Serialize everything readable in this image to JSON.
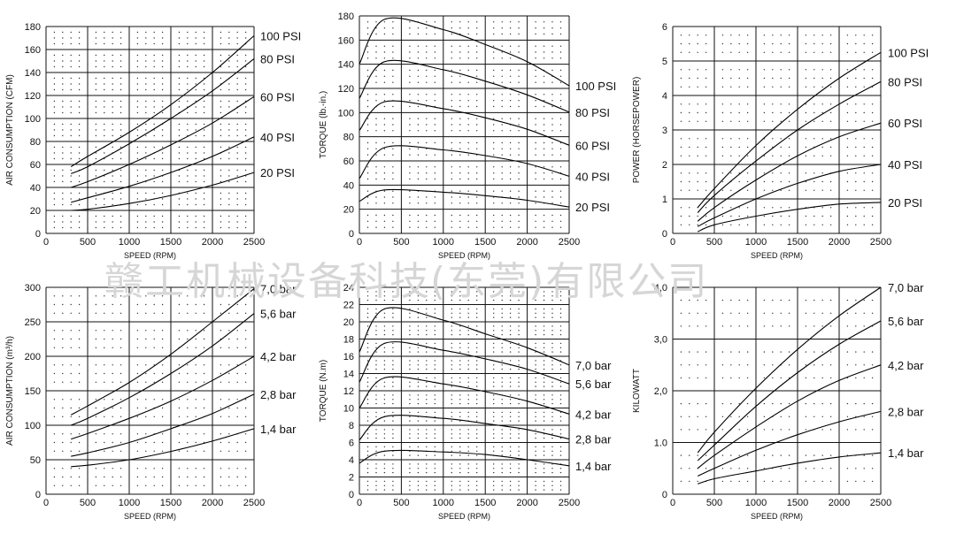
{
  "watermark": "赣工机械设备科技(东莞)有限公司",
  "chart_data": [
    {
      "type": "line",
      "xlabel": "SPEED (RPM)",
      "ylabel": "AIR CONSUMPTION (CFM)",
      "xlim": [
        0,
        2500
      ],
      "ylim": [
        0,
        180
      ],
      "xticks": [
        "0",
        "500",
        "1000",
        "1500",
        "2000",
        "2500"
      ],
      "yticks": [
        "0",
        "20",
        "40",
        "60",
        "80",
        "100",
        "120",
        "140",
        "160",
        "180"
      ],
      "series": [
        {
          "name": "100 PSI",
          "x": [
            300,
            500,
            1000,
            1500,
            2000,
            2500
          ],
          "y": [
            58,
            67,
            88,
            112,
            140,
            172
          ]
        },
        {
          "name": "80 PSI",
          "x": [
            300,
            500,
            1000,
            1500,
            2000,
            2500
          ],
          "y": [
            52,
            58,
            78,
            100,
            124,
            152
          ]
        },
        {
          "name": "60 PSI",
          "x": [
            300,
            500,
            1000,
            1500,
            2000,
            2500
          ],
          "y": [
            40,
            45,
            60,
            77,
            96,
            119
          ]
        },
        {
          "name": "40 PSI",
          "x": [
            300,
            500,
            1000,
            1500,
            2000,
            2500
          ],
          "y": [
            27,
            31,
            41,
            53,
            67,
            84
          ]
        },
        {
          "name": "20 PSI",
          "x": [
            300,
            500,
            1000,
            1500,
            2000,
            2500
          ],
          "y": [
            20,
            21,
            26,
            33,
            42,
            53
          ]
        }
      ]
    },
    {
      "type": "line",
      "xlabel": "SPEED (RPM)",
      "ylabel": "TORQUE (lb.-in.)",
      "xlim": [
        0,
        2500
      ],
      "ylim": [
        0,
        190
      ],
      "xticks": [
        "0",
        "500",
        "1000",
        "1500",
        "2000",
        "2500"
      ],
      "yticks": [
        "0",
        "20",
        "40",
        "60",
        "80",
        "100",
        "120",
        "140",
        "160",
        "180"
      ],
      "series": [
        {
          "name": "100 PSI",
          "x": [
            0,
            300,
            1000,
            1500,
            2000,
            2500
          ],
          "y": [
            148,
            187,
            178,
            165,
            150,
            129
          ]
        },
        {
          "name": "80 PSI",
          "x": [
            0,
            300,
            1000,
            1500,
            2000,
            2500
          ],
          "y": [
            118,
            150,
            143,
            133,
            121,
            106
          ]
        },
        {
          "name": "60 PSI",
          "x": [
            0,
            300,
            1000,
            1500,
            2000,
            2500
          ],
          "y": [
            90,
            115,
            109,
            101,
            91,
            77
          ]
        },
        {
          "name": "40 PSI",
          "x": [
            0,
            300,
            1000,
            1500,
            2000,
            2500
          ],
          "y": [
            48,
            75,
            73,
            68,
            61,
            50
          ]
        },
        {
          "name": "20 PSI",
          "x": [
            0,
            300,
            1000,
            1500,
            2000,
            2500
          ],
          "y": [
            28,
            38,
            36,
            33,
            29,
            23
          ]
        }
      ]
    },
    {
      "type": "line",
      "xlabel": "SPEED (RPM)",
      "ylabel": "POWER (HORSEPOWER)",
      "xlim": [
        0,
        2500
      ],
      "ylim": [
        0,
        6
      ],
      "xticks": [
        "0",
        "500",
        "1000",
        "1500",
        "2000",
        "2500"
      ],
      "yticks": [
        "0",
        "1",
        "2",
        "3",
        "4",
        "5",
        "6"
      ],
      "series": [
        {
          "name": "100 PSI",
          "x": [
            300,
            500,
            1000,
            1500,
            2000,
            2500
          ],
          "y": [
            0.75,
            1.3,
            2.55,
            3.6,
            4.5,
            5.25
          ]
        },
        {
          "name": "80 PSI",
          "x": [
            300,
            500,
            1000,
            1500,
            2000,
            2500
          ],
          "y": [
            0.6,
            1.1,
            2.1,
            3.0,
            3.75,
            4.4
          ]
        },
        {
          "name": "60 PSI",
          "x": [
            300,
            500,
            1000,
            1500,
            2000,
            2500
          ],
          "y": [
            0.35,
            0.75,
            1.55,
            2.25,
            2.8,
            3.2
          ]
        },
        {
          "name": "40 PSI",
          "x": [
            300,
            500,
            1000,
            1500,
            2000,
            2500
          ],
          "y": [
            0.2,
            0.45,
            1.0,
            1.45,
            1.8,
            2.0
          ]
        },
        {
          "name": "20 PSI",
          "x": [
            300,
            500,
            1000,
            1500,
            2000,
            2500
          ],
          "y": [
            0.05,
            0.25,
            0.5,
            0.7,
            0.85,
            0.9
          ]
        }
      ]
    },
    {
      "type": "line",
      "xlabel": "SPEED (RPM)",
      "ylabel": "AIR CONSUMPTION (m³/h)",
      "xlim": [
        0,
        2500
      ],
      "ylim": [
        0,
        300
      ],
      "xticks": [
        "0",
        "500",
        "1000",
        "1500",
        "2000",
        "2500"
      ],
      "yticks": [
        "0",
        "50",
        "100",
        "150",
        "200",
        "250",
        "300"
      ],
      "series": [
        {
          "name": "7,0 bar",
          "x": [
            300,
            500,
            1000,
            1500,
            2000,
            2500
          ],
          "y": [
            115,
            128,
            162,
            203,
            250,
            298
          ]
        },
        {
          "name": "5,6 bar",
          "x": [
            300,
            500,
            1000,
            1500,
            2000,
            2500
          ],
          "y": [
            100,
            110,
            140,
            175,
            215,
            262
          ]
        },
        {
          "name": "4,2 bar",
          "x": [
            300,
            500,
            1000,
            1500,
            2000,
            2500
          ],
          "y": [
            80,
            88,
            110,
            135,
            165,
            200
          ]
        },
        {
          "name": "2,8 bar",
          "x": [
            300,
            500,
            1000,
            1500,
            2000,
            2500
          ],
          "y": [
            55,
            60,
            75,
            95,
            117,
            145
          ]
        },
        {
          "name": "1,4 bar",
          "x": [
            300,
            500,
            1000,
            1500,
            2000,
            2500
          ],
          "y": [
            40,
            42,
            50,
            62,
            77,
            95
          ]
        }
      ]
    },
    {
      "type": "line",
      "xlabel": "SPEED (RPM)",
      "ylabel": "TORQUE (N.m)",
      "xlim": [
        0,
        2500
      ],
      "ylim": [
        0,
        24
      ],
      "xticks": [
        "0",
        "500",
        "1000",
        "1500",
        "2000",
        "2500"
      ],
      "yticks": [
        "0",
        "2",
        "4",
        "6",
        "8",
        "10",
        "12",
        "14",
        "16",
        "18",
        "20",
        "22",
        "24"
      ],
      "series": [
        {
          "name": "7,0 bar",
          "x": [
            0,
            300,
            1000,
            1500,
            2000,
            2500
          ],
          "y": [
            16.5,
            21.5,
            20.2,
            18.6,
            17.0,
            15.0
          ]
        },
        {
          "name": "5,6 bar",
          "x": [
            0,
            300,
            1000,
            1500,
            2000,
            2500
          ],
          "y": [
            13.0,
            17.5,
            16.7,
            15.7,
            14.5,
            12.8
          ]
        },
        {
          "name": "4,2 bar",
          "x": [
            0,
            300,
            1000,
            1500,
            2000,
            2500
          ],
          "y": [
            10.0,
            13.5,
            12.8,
            11.9,
            10.8,
            9.3
          ]
        },
        {
          "name": "2,8 bar",
          "x": [
            0,
            300,
            1000,
            1500,
            2000,
            2500
          ],
          "y": [
            6.3,
            9.0,
            8.8,
            8.2,
            7.5,
            6.4
          ]
        },
        {
          "name": "1,4 bar",
          "x": [
            0,
            300,
            1000,
            1500,
            2000,
            2500
          ],
          "y": [
            3.6,
            5.0,
            4.9,
            4.6,
            4.0,
            3.3
          ]
        }
      ]
    },
    {
      "type": "line",
      "xlabel": "SPEED (RPM)",
      "ylabel": "KILOWATT",
      "xlim": [
        0,
        2500
      ],
      "ylim": [
        0,
        4.0
      ],
      "xticks": [
        "0",
        "500",
        "1000",
        "1500",
        "2000",
        "2500"
      ],
      "yticks": [
        "0",
        "1.0",
        "2,0",
        "3,0",
        "4,0"
      ],
      "series": [
        {
          "name": "7,0 bar",
          "x": [
            300,
            500,
            1000,
            1500,
            2000,
            2500
          ],
          "y": [
            0.8,
            1.2,
            2.05,
            2.8,
            3.45,
            4.0
          ]
        },
        {
          "name": "5,6 bar",
          "x": [
            300,
            500,
            1000,
            1500,
            2000,
            2500
          ],
          "y": [
            0.65,
            0.95,
            1.7,
            2.35,
            2.9,
            3.35
          ]
        },
        {
          "name": "4,2 bar",
          "x": [
            300,
            500,
            1000,
            1500,
            2000,
            2500
          ],
          "y": [
            0.5,
            0.75,
            1.3,
            1.8,
            2.2,
            2.5
          ]
        },
        {
          "name": "2,8 bar",
          "x": [
            300,
            500,
            1000,
            1500,
            2000,
            2500
          ],
          "y": [
            0.35,
            0.5,
            0.85,
            1.15,
            1.4,
            1.6
          ]
        },
        {
          "name": "1,4 bar",
          "x": [
            300,
            500,
            1000,
            1500,
            2000,
            2500
          ],
          "y": [
            0.2,
            0.3,
            0.45,
            0.6,
            0.72,
            0.8
          ]
        }
      ]
    }
  ]
}
